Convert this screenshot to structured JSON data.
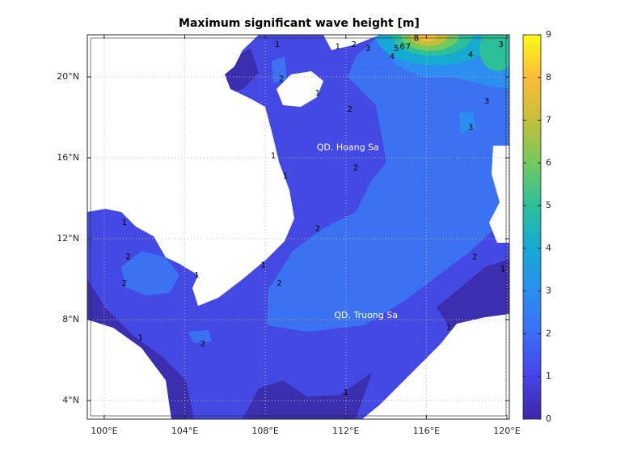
{
  "chart_data": {
    "type": "contour-map",
    "title": "Maximum significant wave height [m]",
    "xlim": [
      99.16,
      120.12
    ],
    "ylim": [
      3.08,
      22.08
    ],
    "xticks": [
      {
        "value": 100,
        "label": "100°E"
      },
      {
        "value": 104,
        "label": "104°E"
      },
      {
        "value": 108,
        "label": "108°E"
      },
      {
        "value": 112,
        "label": "112°E"
      },
      {
        "value": 116,
        "label": "116°E"
      },
      {
        "value": 120,
        "label": "120°E"
      }
    ],
    "yticks": [
      {
        "value": 4,
        "label": "4°N"
      },
      {
        "value": 8,
        "label": "8°N"
      },
      {
        "value": 12,
        "label": "12°N"
      },
      {
        "value": 16,
        "label": "16°N"
      },
      {
        "value": 20,
        "label": "20°N"
      }
    ],
    "grid": true,
    "clim": [
      0,
      9
    ],
    "cticks": [
      0,
      1,
      2,
      3,
      4,
      5,
      6,
      7,
      8,
      9
    ],
    "colormap": [
      "#3e26a8",
      "#4743e8",
      "#3a6ef8",
      "#2b8ef0",
      "#16a9d2",
      "#2dbf9a",
      "#72c95e",
      "#c4bf3a",
      "#fbbc3a",
      "#f9fb14"
    ],
    "annotations": [
      {
        "text": "QD. Hoang Sa",
        "x": 112.1,
        "y": 16.5
      },
      {
        "text": "QD. Truong Sa",
        "x": 113.0,
        "y": 8.2
      }
    ],
    "contour_labels": [
      {
        "value": 1,
        "x": 108.6,
        "y": 21.6
      },
      {
        "value": 2,
        "x": 108.8,
        "y": 19.9
      },
      {
        "value": 1,
        "x": 110.6,
        "y": 19.2
      },
      {
        "value": 2,
        "x": 112.2,
        "y": 18.4
      },
      {
        "value": 1,
        "x": 111.6,
        "y": 21.5
      },
      {
        "value": 2,
        "x": 112.4,
        "y": 21.6
      },
      {
        "value": 3,
        "x": 113.1,
        "y": 21.4
      },
      {
        "value": 4,
        "x": 114.3,
        "y": 21.0
      },
      {
        "value": 5,
        "x": 114.5,
        "y": 21.4
      },
      {
        "value": 6,
        "x": 114.8,
        "y": 21.5
      },
      {
        "value": 7,
        "x": 115.1,
        "y": 21.5
      },
      {
        "value": 8,
        "x": 115.5,
        "y": 21.9
      },
      {
        "value": 4,
        "x": 118.2,
        "y": 21.1
      },
      {
        "value": 3,
        "x": 119.7,
        "y": 21.6
      },
      {
        "value": 3,
        "x": 119.0,
        "y": 18.8
      },
      {
        "value": 3,
        "x": 118.2,
        "y": 17.5
      },
      {
        "value": 2,
        "x": 112.5,
        "y": 15.5
      },
      {
        "value": 1,
        "x": 108.4,
        "y": 16.1
      },
      {
        "value": 1,
        "x": 109.0,
        "y": 15.1
      },
      {
        "value": 2,
        "x": 110.6,
        "y": 12.5
      },
      {
        "value": 1,
        "x": 101.0,
        "y": 12.8
      },
      {
        "value": 2,
        "x": 101.2,
        "y": 11.1
      },
      {
        "value": 2,
        "x": 101.0,
        "y": 9.8
      },
      {
        "value": 1,
        "x": 104.6,
        "y": 10.2
      },
      {
        "value": 1,
        "x": 107.9,
        "y": 10.7
      },
      {
        "value": 2,
        "x": 108.7,
        "y": 9.8
      },
      {
        "value": 2,
        "x": 118.4,
        "y": 11.1
      },
      {
        "value": 1,
        "x": 119.8,
        "y": 10.5
      },
      {
        "value": 1,
        "x": 101.8,
        "y": 7.1
      },
      {
        "value": 2,
        "x": 104.9,
        "y": 6.8
      },
      {
        "value": 1,
        "x": 112.0,
        "y": 4.4
      },
      {
        "value": 1,
        "x": 117.1,
        "y": 7.6
      }
    ]
  }
}
